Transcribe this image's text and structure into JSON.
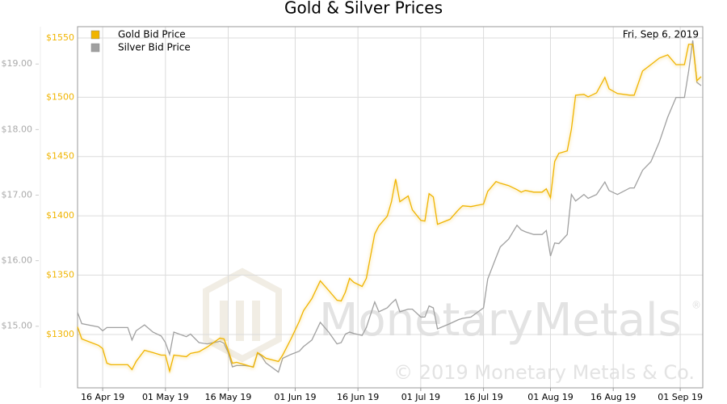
{
  "chart_data": {
    "type": "line",
    "title": "Gold & Silver Prices",
    "date_label": "Fri, Sep 6, 2019",
    "watermark": "MonetaryMetals",
    "watermark_mark": "®",
    "copyright": "© 2019 Monetary Metals & Co.",
    "x": [
      "2019-04-10",
      "2019-04-11",
      "2019-04-15",
      "2019-04-16",
      "2019-04-17",
      "2019-04-18",
      "2019-04-22",
      "2019-04-23",
      "2019-04-24",
      "2019-04-26",
      "2019-04-28",
      "2019-04-30",
      "2019-05-01",
      "2019-05-02",
      "2019-05-03",
      "2019-05-06",
      "2019-05-07",
      "2019-05-09",
      "2019-05-11",
      "2019-05-14",
      "2019-05-15",
      "2019-05-16",
      "2019-05-17",
      "2019-05-18",
      "2019-05-20",
      "2019-05-22",
      "2019-05-23",
      "2019-05-24",
      "2019-05-25",
      "2019-05-28",
      "2019-05-29",
      "2019-05-31",
      "2019-06-02",
      "2019-06-03",
      "2019-06-05",
      "2019-06-07",
      "2019-06-09",
      "2019-06-11",
      "2019-06-12",
      "2019-06-13",
      "2019-06-14",
      "2019-06-15",
      "2019-06-17",
      "2019-06-18",
      "2019-06-20",
      "2019-06-21",
      "2019-06-23",
      "2019-06-24",
      "2019-06-25",
      "2019-06-26",
      "2019-06-28",
      "2019-06-29",
      "2019-07-01",
      "2019-07-02",
      "2019-07-03",
      "2019-07-04",
      "2019-07-05",
      "2019-07-08",
      "2019-07-10",
      "2019-07-11",
      "2019-07-13",
      "2019-07-16",
      "2019-07-17",
      "2019-07-19",
      "2019-07-20",
      "2019-07-22",
      "2019-07-24",
      "2019-07-25",
      "2019-07-26",
      "2019-07-28",
      "2019-07-30",
      "2019-07-31",
      "2019-08-01",
      "2019-08-02",
      "2019-08-03",
      "2019-08-05",
      "2019-08-06",
      "2019-08-07",
      "2019-08-09",
      "2019-08-10",
      "2019-08-12",
      "2019-08-14",
      "2019-08-15",
      "2019-08-17",
      "2019-08-20",
      "2019-08-21",
      "2019-08-23",
      "2019-08-25",
      "2019-08-27",
      "2019-08-29",
      "2019-08-31",
      "2019-09-02",
      "2019-09-03",
      "2019-09-04",
      "2019-09-05",
      "2019-09-06"
    ],
    "series": [
      {
        "name": "Gold Bid Price",
        "color": "#f0b400",
        "values": [
          1306.4,
          1296.2,
          1290.8,
          1288.1,
          1275.8,
          1274.5,
          1274.5,
          1270.4,
          1277.2,
          1286.7,
          1284.7,
          1282.6,
          1282.6,
          1269,
          1282.6,
          1281.3,
          1284,
          1285.4,
          1289.4,
          1296.9,
          1296.2,
          1286.7,
          1275.8,
          1276.5,
          1274.5,
          1272.4,
          1284.7,
          1282.6,
          1279.9,
          1277.2,
          1282.6,
          1296.2,
          1311.2,
          1320.1,
          1330.3,
          1345.2,
          1337.1,
          1328.9,
          1328.2,
          1335.7,
          1347.3,
          1343.9,
          1340.5,
          1347.3,
          1384.7,
          1391.5,
          1399.7,
          1411.9,
          1431,
          1411.9,
          1416.7,
          1405.1,
          1396.3,
          1395.6,
          1418.7,
          1416,
          1392.9,
          1397.1,
          1405.1,
          1408.5,
          1407.8,
          1409.9,
          1420.7,
          1428.9,
          1427.5,
          1425.5,
          1422.1,
          1420,
          1421.4,
          1420,
          1420,
          1422.8,
          1415.3,
          1445.9,
          1452.7,
          1454.8,
          1473.1,
          1501.7,
          1502.4,
          1500.3,
          1503.7,
          1516.7,
          1507.1,
          1503.1,
          1501.7,
          1501.7,
          1522.1,
          1527.5,
          1533,
          1535.7,
          1527.5,
          1527.5,
          1544.6,
          1544.6,
          1514,
          1517.3
        ]
      },
      {
        "name": "Silver Bid Price",
        "color": "#a0a0a0",
        "axis": "y2",
        "values": [
          15.21,
          15.04,
          14.99,
          14.93,
          14.98,
          14.98,
          14.98,
          14.79,
          14.93,
          15.02,
          14.91,
          14.85,
          14.75,
          14.57,
          14.91,
          14.84,
          14.88,
          14.75,
          14.73,
          14.77,
          14.74,
          14.6,
          14.38,
          14.4,
          14.4,
          14.38,
          14.59,
          14.54,
          14.44,
          14.3,
          14.51,
          14.57,
          14.62,
          14.69,
          14.79,
          15.06,
          14.91,
          14.73,
          14.75,
          14.88,
          14.91,
          14.89,
          14.86,
          14.98,
          15.37,
          15.22,
          15.28,
          15.35,
          15.41,
          15.22,
          15.26,
          15.26,
          15.14,
          15.14,
          15.31,
          15.28,
          14.96,
          15.04,
          15.1,
          15.12,
          15.14,
          15.28,
          15.72,
          16.05,
          16.21,
          16.33,
          16.54,
          16.47,
          16.44,
          16.4,
          16.4,
          16.46,
          16.07,
          16.27,
          16.26,
          16.4,
          17.01,
          16.91,
          17.01,
          16.95,
          17.01,
          17.2,
          17.07,
          17.01,
          17.11,
          17.11,
          17.38,
          17.51,
          17.81,
          18.19,
          18.49,
          18.49,
          18.89,
          19.36,
          18.72,
          18.67
        ]
      }
    ],
    "xlim": [
      "2019-04-10",
      "2019-09-06"
    ],
    "xticks": [
      {
        "value": "2019-04-16",
        "label": "16 Apr 19"
      },
      {
        "value": "2019-05-01",
        "label": "01 May 19"
      },
      {
        "value": "2019-05-16",
        "label": "16 May 19"
      },
      {
        "value": "2019-06-01",
        "label": "01 Jun 19"
      },
      {
        "value": "2019-06-16",
        "label": "16 Jun 19"
      },
      {
        "value": "2019-07-01",
        "label": "01 Jul 19"
      },
      {
        "value": "2019-07-16",
        "label": "16 Jul 19"
      },
      {
        "value": "2019-08-01",
        "label": "01 Aug 19"
      },
      {
        "value": "2019-08-16",
        "label": "16 Aug 19"
      },
      {
        "value": "2019-09-01",
        "label": "01 Sep 19"
      }
    ],
    "ylim": [
      1255,
      1559.5
    ],
    "yticks": [
      {
        "value": 1300,
        "label": "$1300"
      },
      {
        "value": 1350,
        "label": "$1350"
      },
      {
        "value": 1400,
        "label": "$1400"
      },
      {
        "value": 1450,
        "label": "$1450"
      },
      {
        "value": 1500,
        "label": "$1500"
      },
      {
        "value": 1550,
        "label": "$1550"
      }
    ],
    "y2lim": [
      14.06,
      19.57
    ],
    "y2ticks": [
      {
        "value": 15,
        "label": "$15.00"
      },
      {
        "value": 16,
        "label": "$16.00"
      },
      {
        "value": 17,
        "label": "$17.00"
      },
      {
        "value": 18,
        "label": "$18.00"
      },
      {
        "value": 19,
        "label": "$19.00"
      }
    ],
    "grid": true,
    "legend": "upper left"
  }
}
